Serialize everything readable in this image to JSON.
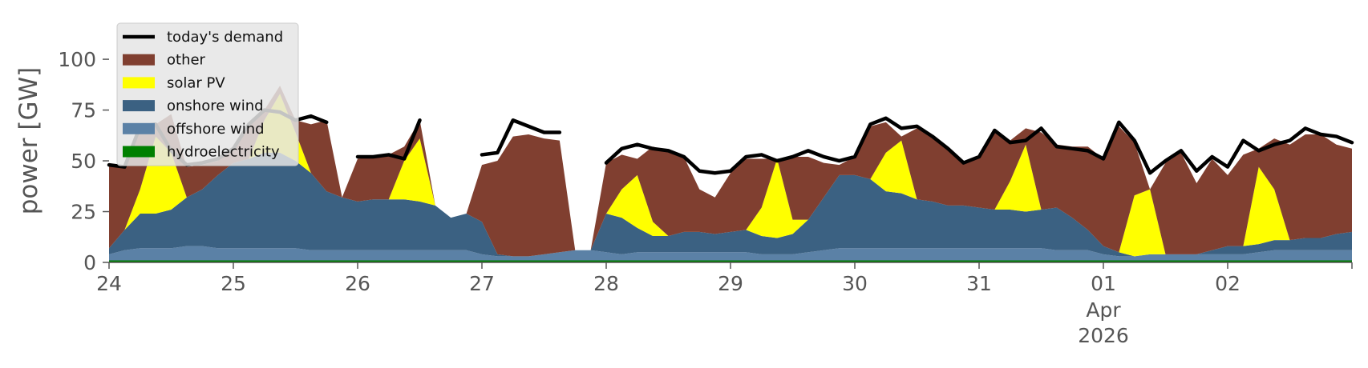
{
  "chart_data": {
    "type": "area",
    "ylabel": "power [GW]",
    "ylim": [
      0,
      115
    ],
    "yticks": [
      0,
      25,
      50,
      75,
      100
    ],
    "xlim": [
      "2026-03-24T00:00",
      "2026-04-03T00:00"
    ],
    "xticks": [
      {
        "x": "2026-03-24",
        "label": "24"
      },
      {
        "x": "2026-03-25",
        "label": "25"
      },
      {
        "x": "2026-03-26",
        "label": "26"
      },
      {
        "x": "2026-03-27",
        "label": "27"
      },
      {
        "x": "2026-03-28",
        "label": "28"
      },
      {
        "x": "2026-03-29",
        "label": "29"
      },
      {
        "x": "2026-03-30",
        "label": "30"
      },
      {
        "x": "2026-03-31",
        "label": "31"
      },
      {
        "x": "2026-04-01",
        "label": "01",
        "sublabel": "Apr",
        "sublabel2": "2026"
      },
      {
        "x": "2026-04-02",
        "label": "02"
      }
    ],
    "grid": false,
    "legend_position": "upper-left",
    "x": [
      "2026-03-24T00:00",
      "2026-03-24T03:00",
      "2026-03-24T06:00",
      "2026-03-24T09:00",
      "2026-03-24T12:00",
      "2026-03-24T15:00",
      "2026-03-24T18:00",
      "2026-03-24T21:00",
      "2026-03-25T00:00",
      "2026-03-25T03:00",
      "2026-03-25T06:00",
      "2026-03-25T09:00",
      "2026-03-25T12:00",
      "2026-03-25T15:00",
      "2026-03-25T18:00",
      "2026-03-25T21:00",
      "2026-03-26T00:00",
      "2026-03-26T03:00",
      "2026-03-26T06:00",
      "2026-03-26T09:00",
      "2026-03-26T12:00",
      "2026-03-26T15:00",
      "2026-03-26T18:00",
      "2026-03-26T21:00",
      "2026-03-27T00:00",
      "2026-03-27T03:00",
      "2026-03-27T06:00",
      "2026-03-27T09:00",
      "2026-03-27T12:00",
      "2026-03-27T15:00",
      "2026-03-27T18:00",
      "2026-03-27T21:00",
      "2026-03-28T00:00",
      "2026-03-28T03:00",
      "2026-03-28T06:00",
      "2026-03-28T09:00",
      "2026-03-28T12:00",
      "2026-03-28T15:00",
      "2026-03-28T18:00",
      "2026-03-28T21:00",
      "2026-03-29T00:00",
      "2026-03-29T03:00",
      "2026-03-29T06:00",
      "2026-03-29T09:00",
      "2026-03-29T12:00",
      "2026-03-29T15:00",
      "2026-03-29T18:00",
      "2026-03-29T21:00",
      "2026-03-30T00:00",
      "2026-03-30T03:00",
      "2026-03-30T06:00",
      "2026-03-30T09:00",
      "2026-03-30T12:00",
      "2026-03-30T15:00",
      "2026-03-30T18:00",
      "2026-03-30T21:00",
      "2026-03-31T00:00",
      "2026-03-31T03:00",
      "2026-03-31T06:00",
      "2026-03-31T09:00",
      "2026-03-31T12:00",
      "2026-03-31T15:00",
      "2026-03-31T18:00",
      "2026-03-31T21:00",
      "2026-04-01T00:00",
      "2026-04-01T03:00",
      "2026-04-01T06:00",
      "2026-04-01T09:00",
      "2026-04-01T12:00",
      "2026-04-01T15:00",
      "2026-04-01T18:00",
      "2026-04-01T21:00",
      "2026-04-02T00:00",
      "2026-04-02T03:00",
      "2026-04-02T06:00",
      "2026-04-02T09:00",
      "2026-04-02T12:00",
      "2026-04-02T15:00",
      "2026-04-02T18:00",
      "2026-04-02T21:00",
      "2026-04-03T00:00"
    ],
    "series": [
      {
        "name": "hydroelectricity",
        "color": "#008000",
        "kind": "stack",
        "values": [
          1,
          1,
          1,
          1,
          1,
          1,
          1,
          1,
          1,
          1,
          1,
          1,
          1,
          1,
          1,
          1,
          1,
          1,
          1,
          1,
          1,
          1,
          1,
          1,
          1,
          1,
          1,
          1,
          1,
          1,
          1,
          1,
          1,
          1,
          1,
          1,
          1,
          1,
          1,
          1,
          1,
          1,
          1,
          1,
          1,
          1,
          1,
          1,
          1,
          1,
          1,
          1,
          1,
          1,
          1,
          1,
          1,
          1,
          1,
          1,
          1,
          1,
          1,
          1,
          1,
          1,
          1,
          1,
          1,
          1,
          1,
          1,
          1,
          1,
          1,
          1,
          1,
          1,
          1,
          1,
          1
        ]
      },
      {
        "name": "offshore wind",
        "color": "#5b81a6",
        "kind": "stack",
        "values": [
          3,
          5,
          6,
          6,
          6,
          7,
          7,
          6,
          6,
          6,
          6,
          6,
          6,
          5,
          5,
          5,
          5,
          5,
          5,
          5,
          5,
          5,
          5,
          5,
          3,
          2,
          2,
          2,
          3,
          4,
          5,
          5,
          4,
          3,
          4,
          4,
          4,
          4,
          4,
          4,
          4,
          4,
          3,
          3,
          3,
          4,
          5,
          6,
          6,
          6,
          6,
          6,
          6,
          6,
          6,
          6,
          6,
          6,
          6,
          6,
          6,
          5,
          5,
          5,
          3,
          2,
          2,
          3,
          3,
          3,
          3,
          3,
          3,
          3,
          4,
          5,
          5,
          5,
          5,
          5,
          5
        ]
      },
      {
        "name": "onshore wind",
        "color": "#3b6182",
        "kind": "stack",
        "values": [
          3,
          10,
          17,
          17,
          19,
          24,
          28,
          36,
          42,
          44,
          47,
          47,
          43,
          38,
          29,
          26,
          24,
          25,
          25,
          25,
          24,
          22,
          16,
          18,
          16,
          1,
          0,
          0,
          0,
          0,
          0,
          0,
          19,
          18,
          12,
          8,
          8,
          10,
          10,
          9,
          10,
          11,
          9,
          8,
          10,
          16,
          26,
          36,
          36,
          34,
          28,
          27,
          24,
          23,
          21,
          21,
          20,
          19,
          19,
          18,
          19,
          21,
          16,
          10,
          4,
          2,
          0,
          0,
          0,
          0,
          0,
          2,
          4,
          4,
          4,
          5,
          5,
          6,
          6,
          8,
          9
        ]
      },
      {
        "name": "solar PV",
        "color": "#ffff00",
        "kind": "stack",
        "values": [
          0,
          0,
          12,
          38,
          28,
          0,
          0,
          0,
          0,
          0,
          16,
          29,
          14,
          0,
          0,
          0,
          0,
          0,
          0,
          19,
          31,
          0,
          0,
          0,
          0,
          0,
          0,
          0,
          0,
          0,
          0,
          0,
          0,
          14,
          26,
          7,
          0,
          0,
          0,
          0,
          0,
          0,
          14,
          39,
          7,
          0,
          0,
          0,
          0,
          0,
          19,
          26,
          0,
          0,
          0,
          0,
          0,
          0,
          14,
          33,
          0,
          0,
          0,
          0,
          0,
          0,
          30,
          32,
          0,
          0,
          0,
          0,
          0,
          0,
          38,
          25,
          0,
          0,
          0,
          0,
          0
        ]
      },
      {
        "name": "other",
        "color": "#803f30",
        "kind": "stack",
        "values": [
          41,
          31,
          31,
          6,
          19,
          15,
          12,
          7,
          7,
          17,
          5,
          4,
          6,
          24,
          35,
          0,
          21,
          21,
          22,
          7,
          9,
          0,
          0,
          0,
          28,
          46,
          59,
          60,
          57,
          55,
          0,
          0,
          25,
          17,
          8,
          37,
          42,
          37,
          21,
          18,
          29,
          35,
          24,
          0,
          31,
          31,
          17,
          5,
          9,
          26,
          15,
          2,
          35,
          31,
          28,
          21,
          25,
          38,
          20,
          8,
          38,
          31,
          35,
          41,
          43,
          62,
          26,
          0,
          45,
          50,
          35,
          45,
          35,
          45,
          9,
          25,
          47,
          51,
          51,
          44,
          41
        ]
      },
      {
        "name": "today's demand",
        "color": "#000000",
        "kind": "line",
        "values": [
          48,
          47,
          67,
          68,
          55,
          48,
          49,
          51,
          56,
          68,
          75,
          74,
          70,
          72,
          69,
          null,
          52,
          52,
          53,
          51,
          70,
          null,
          null,
          null,
          53,
          54,
          70,
          67,
          64,
          64,
          null,
          null,
          49,
          56,
          58,
          56,
          55,
          52,
          45,
          44,
          45,
          52,
          53,
          50,
          52,
          55,
          52,
          50,
          52,
          68,
          71,
          66,
          67,
          62,
          56,
          49,
          52,
          65,
          59,
          60,
          66,
          57,
          56,
          55,
          51,
          69,
          60,
          44,
          50,
          55,
          45,
          52,
          47,
          60,
          55,
          58,
          60,
          66,
          63,
          62,
          59
        ]
      }
    ],
    "legend": [
      "today's demand",
      "other",
      "solar PV",
      "onshore wind",
      "offshore wind",
      "hydroelectricity"
    ]
  }
}
